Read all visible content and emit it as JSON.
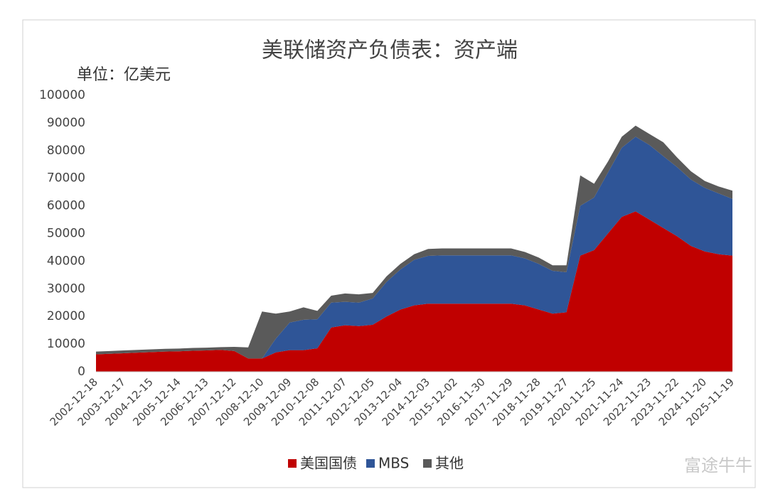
{
  "chart_data": {
    "type": "stacked_area",
    "title": "美联储资产负债表：资产端",
    "y_axis_label": "单位：亿美元",
    "categories": [
      "2002-12-18",
      null,
      "2003-12-17",
      null,
      "2004-12-15",
      null,
      "2005-12-14",
      null,
      "2006-12-13",
      null,
      "2007-12-12",
      null,
      "2008-12-10",
      null,
      "2009-12-09",
      null,
      "2010-12-08",
      null,
      "2011-12-07",
      null,
      "2012-12-05",
      null,
      "2013-12-04",
      null,
      "2014-12-03",
      null,
      "2015-12-02",
      null,
      "2016-11-30",
      null,
      "2017-11-29",
      null,
      "2018-11-28",
      null,
      "2019-11-27",
      null,
      "2020-11-25",
      null,
      "2021-11-24",
      null,
      "2022-11-23",
      null,
      "2023-11-22",
      null,
      "2024-11-20",
      null,
      "2025-11-19"
    ],
    "series": [
      {
        "name": "美国国债",
        "color": "#c00000",
        "values": [
          6300,
          6500,
          6700,
          6900,
          7100,
          7300,
          7400,
          7600,
          7700,
          7900,
          7500,
          4800,
          4800,
          7000,
          7800,
          7800,
          8500,
          16000,
          16800,
          16500,
          17000,
          20000,
          22500,
          24000,
          24600,
          24600,
          24600,
          24600,
          24600,
          24600,
          24600,
          24000,
          22500,
          21000,
          21500,
          42000,
          44000,
          50000,
          56000,
          58000,
          55000,
          52000,
          49000,
          45500,
          43500,
          42500,
          42000
        ]
      },
      {
        "name": "MBS",
        "color": "#2f5597",
        "values": [
          0,
          0,
          0,
          0,
          0,
          0,
          0,
          0,
          0,
          0,
          0,
          0,
          0,
          5000,
          10000,
          11000,
          10500,
          9000,
          8500,
          8500,
          9500,
          12500,
          14500,
          16500,
          17300,
          17500,
          17500,
          17500,
          17500,
          17500,
          17500,
          17000,
          16500,
          15500,
          14500,
          18000,
          19000,
          22000,
          25000,
          27000,
          27000,
          26000,
          25000,
          24000,
          23000,
          22000,
          20500
        ]
      },
      {
        "name": "其他",
        "color": "#5a5a5a",
        "values": [
          1000,
          1000,
          1000,
          1000,
          1000,
          1000,
          1000,
          1000,
          1000,
          1000,
          1500,
          4000,
          17000,
          9000,
          4000,
          4500,
          3000,
          2500,
          3000,
          3000,
          2000,
          2000,
          2000,
          2000,
          2500,
          2500,
          2500,
          2500,
          2500,
          2500,
          2500,
          2300,
          2300,
          2000,
          2500,
          11000,
          5000,
          4000,
          4000,
          4000,
          4000,
          5000,
          3500,
          3000,
          2500,
          2500,
          3000
        ]
      }
    ],
    "ylim": [
      0,
      100000
    ],
    "yticks": [
      0,
      10000,
      20000,
      30000,
      40000,
      50000,
      60000,
      70000,
      80000,
      90000,
      100000
    ]
  },
  "watermark": "富途牛牛"
}
